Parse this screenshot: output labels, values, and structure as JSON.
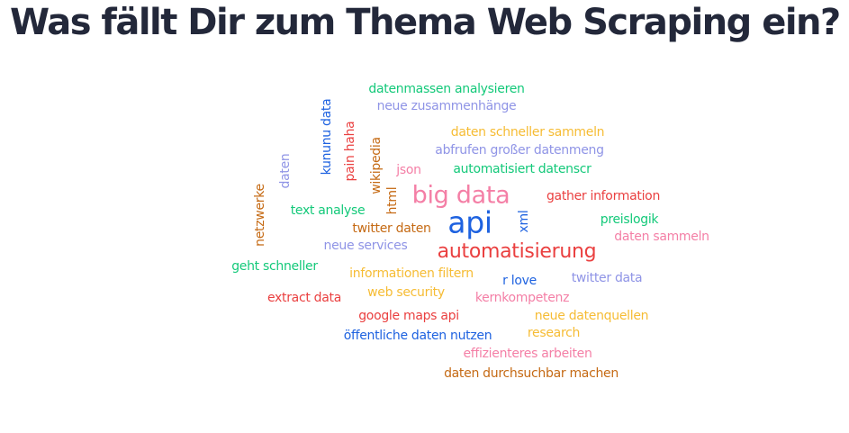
{
  "title": "Was fällt Dir zum Thema Web Scraping ein?",
  "colors": {
    "green": "#14c97a",
    "lavender": "#8f94e6",
    "yellow": "#f6bc34",
    "pink": "#f47fa6",
    "red": "#ea4040",
    "blue": "#1e62e0",
    "brown": "#c56a14"
  },
  "words": [
    {
      "text": "datenmassen analysieren",
      "color": "green"
    },
    {
      "text": "neue zusammenhänge",
      "color": "lavender"
    },
    {
      "text": "daten schneller sammeln",
      "color": "yellow"
    },
    {
      "text": "abfrufen großer datenmeng",
      "color": "lavender"
    },
    {
      "text": "automatisiert datenscr",
      "color": "green"
    },
    {
      "text": "json",
      "color": "pink"
    },
    {
      "text": "big data",
      "color": "pink"
    },
    {
      "text": "gather information",
      "color": "red"
    },
    {
      "text": "text analyse",
      "color": "green"
    },
    {
      "text": "twitter daten",
      "color": "brown"
    },
    {
      "text": "api",
      "color": "blue"
    },
    {
      "text": "preislogik",
      "color": "green"
    },
    {
      "text": "daten sammeln",
      "color": "pink"
    },
    {
      "text": "neue services",
      "color": "lavender"
    },
    {
      "text": "automatisierung",
      "color": "red"
    },
    {
      "text": "geht schneller",
      "color": "green"
    },
    {
      "text": "informationen filtern",
      "color": "yellow"
    },
    {
      "text": "r love",
      "color": "blue"
    },
    {
      "text": "twitter data",
      "color": "lavender"
    },
    {
      "text": "extract data",
      "color": "red"
    },
    {
      "text": "web security",
      "color": "yellow"
    },
    {
      "text": "kernkompetenz",
      "color": "pink"
    },
    {
      "text": "google maps api",
      "color": "red"
    },
    {
      "text": "neue datenquellen",
      "color": "yellow"
    },
    {
      "text": "öffentliche daten nutzen",
      "color": "blue"
    },
    {
      "text": "research",
      "color": "yellow"
    },
    {
      "text": "effizienteres arbeiten",
      "color": "pink"
    },
    {
      "text": "daten durchsuchbar machen",
      "color": "brown"
    },
    {
      "text": "kununu data",
      "color": "blue"
    },
    {
      "text": "pain haha",
      "color": "red"
    },
    {
      "text": "wikipedia",
      "color": "brown"
    },
    {
      "text": "daten",
      "color": "lavender"
    },
    {
      "text": "netzwerke",
      "color": "brown"
    },
    {
      "text": "html",
      "color": "brown"
    },
    {
      "text": "xml",
      "color": "blue"
    }
  ]
}
